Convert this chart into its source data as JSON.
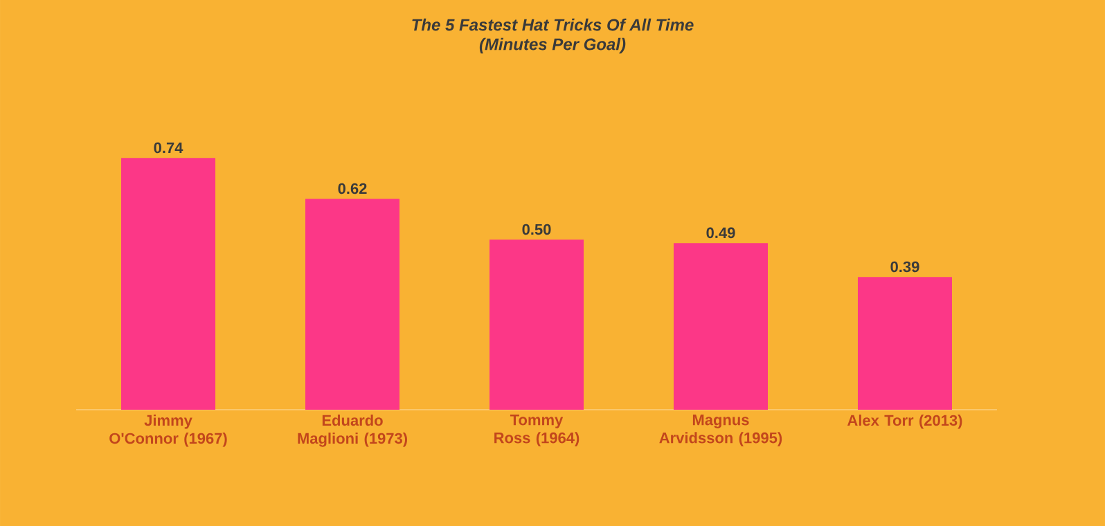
{
  "chart_data": {
    "type": "bar",
    "title": "The 5 Fastest Hat Tricks Of All Time",
    "subtitle": "(Minutes Per Goal)",
    "categories": [
      "Jimmy O'Connor (1967)",
      "Eduardo Maglioni (1973)",
      "Tommy Ross (1964)",
      "Magnus Arvidsson (1995)",
      "Alex Torr (2013)"
    ],
    "values": [
      0.74,
      0.62,
      0.5,
      0.49,
      0.39
    ],
    "value_labels": [
      "0.74",
      "0.62",
      "0.50",
      "0.49",
      "0.39"
    ],
    "color": "#fc3787",
    "tick_labels": "x"
  }
}
